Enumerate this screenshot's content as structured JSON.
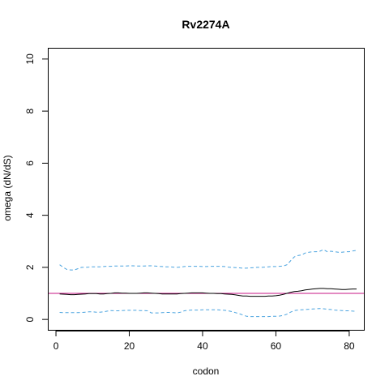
{
  "chart_data": {
    "type": "line",
    "title": "Rv2274A",
    "xlabel": "codon",
    "ylabel": "omega (dN/dS)",
    "xlim": [
      -2,
      84
    ],
    "ylim": [
      -0.4,
      10.4
    ],
    "x_ticks": [
      0,
      20,
      40,
      60,
      80
    ],
    "y_ticks": [
      0,
      2,
      4,
      6,
      8,
      10
    ],
    "reference_line": {
      "y": 1,
      "color": "#c71585"
    },
    "grid": false,
    "legend": "none",
    "x": [
      1,
      2,
      3,
      4,
      5,
      6,
      7,
      8,
      9,
      10,
      11,
      12,
      13,
      14,
      15,
      16,
      17,
      18,
      19,
      20,
      21,
      22,
      23,
      24,
      25,
      26,
      27,
      28,
      29,
      30,
      31,
      32,
      33,
      34,
      35,
      36,
      37,
      38,
      39,
      40,
      41,
      42,
      43,
      44,
      45,
      46,
      47,
      48,
      49,
      50,
      51,
      52,
      53,
      54,
      55,
      56,
      57,
      58,
      59,
      60,
      61,
      62,
      63,
      64,
      65,
      66,
      67,
      68,
      69,
      70,
      71,
      72,
      73,
      74,
      75,
      76,
      77,
      78,
      79,
      80,
      81,
      82
    ],
    "series": [
      {
        "style": "solid",
        "color": "#000000",
        "values": [
          0.98,
          0.97,
          0.96,
          0.95,
          0.95,
          0.96,
          0.97,
          0.98,
          0.99,
          0.99,
          0.99,
          0.98,
          0.98,
          0.99,
          1.0,
          1.02,
          1.02,
          1.01,
          1.01,
          1.0,
          1.0,
          1.0,
          1.01,
          1.02,
          1.02,
          1.01,
          1.0,
          0.99,
          0.98,
          0.98,
          0.98,
          0.98,
          0.98,
          0.99,
          1.0,
          1.01,
          1.02,
          1.02,
          1.02,
          1.02,
          1.01,
          1.0,
          1.0,
          0.99,
          0.99,
          0.98,
          0.97,
          0.96,
          0.94,
          0.92,
          0.9,
          0.9,
          0.89,
          0.89,
          0.89,
          0.89,
          0.89,
          0.9,
          0.9,
          0.91,
          0.93,
          0.96,
          1.0,
          1.04,
          1.07,
          1.08,
          1.1,
          1.13,
          1.15,
          1.17,
          1.18,
          1.19,
          1.19,
          1.18,
          1.18,
          1.17,
          1.16,
          1.15,
          1.15,
          1.16,
          1.17,
          1.17
        ]
      },
      {
        "style": "dashed",
        "color": "#4aa3df",
        "values": [
          2.1,
          2.0,
          1.92,
          1.9,
          1.9,
          1.95,
          2.0,
          2.0,
          2.01,
          2.02,
          2.02,
          2.02,
          2.03,
          2.04,
          2.04,
          2.05,
          2.05,
          2.05,
          2.05,
          2.06,
          2.06,
          2.05,
          2.05,
          2.05,
          2.06,
          2.06,
          2.05,
          2.04,
          2.03,
          2.02,
          2.02,
          2.01,
          2.0,
          2.01,
          2.03,
          2.04,
          2.04,
          2.04,
          2.04,
          2.03,
          2.03,
          2.04,
          2.04,
          2.04,
          2.04,
          2.03,
          2.01,
          2.0,
          1.99,
          1.98,
          1.97,
          1.97,
          1.98,
          1.99,
          2.0,
          2.0,
          2.01,
          2.02,
          2.03,
          2.03,
          2.04,
          2.05,
          2.1,
          2.25,
          2.4,
          2.45,
          2.48,
          2.55,
          2.58,
          2.6,
          2.6,
          2.62,
          2.68,
          2.6,
          2.62,
          2.6,
          2.58,
          2.58,
          2.6,
          2.6,
          2.63,
          2.65
        ]
      },
      {
        "style": "dashed",
        "color": "#4aa3df",
        "values": [
          0.27,
          0.26,
          0.26,
          0.26,
          0.26,
          0.26,
          0.27,
          0.28,
          0.29,
          0.29,
          0.28,
          0.28,
          0.29,
          0.32,
          0.34,
          0.33,
          0.33,
          0.34,
          0.35,
          0.35,
          0.35,
          0.35,
          0.34,
          0.34,
          0.33,
          0.25,
          0.25,
          0.25,
          0.26,
          0.27,
          0.27,
          0.26,
          0.25,
          0.28,
          0.33,
          0.35,
          0.36,
          0.36,
          0.36,
          0.37,
          0.37,
          0.37,
          0.37,
          0.37,
          0.36,
          0.35,
          0.33,
          0.3,
          0.26,
          0.22,
          0.17,
          0.12,
          0.11,
          0.11,
          0.11,
          0.11,
          0.11,
          0.11,
          0.12,
          0.12,
          0.13,
          0.15,
          0.2,
          0.28,
          0.34,
          0.36,
          0.37,
          0.38,
          0.39,
          0.4,
          0.41,
          0.42,
          0.41,
          0.39,
          0.38,
          0.36,
          0.35,
          0.34,
          0.33,
          0.33,
          0.32,
          0.31
        ]
      }
    ]
  }
}
